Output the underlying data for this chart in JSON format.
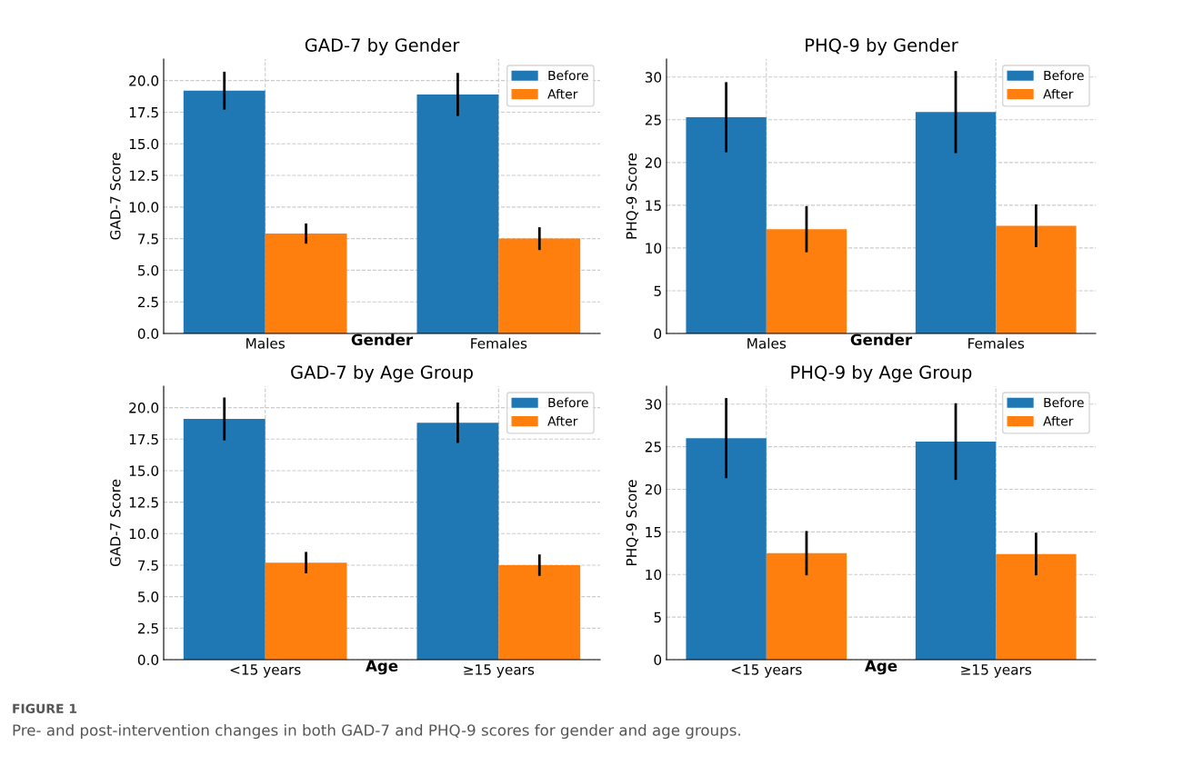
{
  "chart_data": [
    {
      "type": "bar",
      "title": "GAD-7 by Gender",
      "xlabel": "Gender",
      "ylabel": "GAD-7 Score",
      "categories": [
        "Males",
        "Females"
      ],
      "series": [
        {
          "name": "Before",
          "color": "#1f77b4",
          "values": [
            19.2,
            18.9
          ],
          "errors": [
            1.5,
            1.7
          ]
        },
        {
          "name": "After",
          "color": "#ff7f0e",
          "values": [
            7.9,
            7.5
          ],
          "errors": [
            0.8,
            0.9
          ]
        }
      ],
      "ylim": [
        0,
        21.7
      ],
      "yticks": [
        {
          "value": 0,
          "label": "0.0"
        },
        {
          "value": 2.5,
          "label": "2.5"
        },
        {
          "value": 5,
          "label": "5.0"
        },
        {
          "value": 7.5,
          "label": "7.5"
        },
        {
          "value": 10,
          "label": "10.0"
        },
        {
          "value": 12.5,
          "label": "12.5"
        },
        {
          "value": 15,
          "label": "15.0"
        },
        {
          "value": 17.5,
          "label": "17.5"
        },
        {
          "value": 20,
          "label": "20.0"
        }
      ],
      "grid": true,
      "legend": "top right"
    },
    {
      "type": "bar",
      "title": "PHQ-9 by Gender",
      "xlabel": "Gender",
      "ylabel": "PHQ-9 Score",
      "categories": [
        "Males",
        "Females"
      ],
      "series": [
        {
          "name": "Before",
          "color": "#1f77b4",
          "values": [
            25.3,
            25.9
          ],
          "errors": [
            4.1,
            4.8
          ]
        },
        {
          "name": "After",
          "color": "#ff7f0e",
          "values": [
            12.2,
            12.6
          ],
          "errors": [
            2.7,
            2.5
          ]
        }
      ],
      "ylim": [
        0,
        32.1
      ],
      "yticks": [
        0,
        5,
        10,
        15,
        20,
        25,
        30
      ],
      "grid": true,
      "legend": "top right"
    },
    {
      "type": "bar",
      "title": "GAD-7 by Age Group",
      "xlabel": "Age",
      "ylabel": "GAD-7 Score",
      "categories": [
        "<15 years",
        "≥15 years"
      ],
      "series": [
        {
          "name": "Before",
          "color": "#1f77b4",
          "values": [
            19.1,
            18.8
          ],
          "errors": [
            1.7,
            1.6
          ]
        },
        {
          "name": "After",
          "color": "#ff7f0e",
          "values": [
            7.7,
            7.5
          ],
          "errors": [
            0.85,
            0.85
          ]
        }
      ],
      "ylim": [
        0,
        21.7
      ],
      "yticks": [
        {
          "value": 0,
          "label": "0.0"
        },
        {
          "value": 2.5,
          "label": "2.5"
        },
        {
          "value": 5,
          "label": "5.0"
        },
        {
          "value": 7.5,
          "label": "7.5"
        },
        {
          "value": 10,
          "label": "10.0"
        },
        {
          "value": 12.5,
          "label": "12.5"
        },
        {
          "value": 15,
          "label": "15.0"
        },
        {
          "value": 17.5,
          "label": "17.5"
        },
        {
          "value": 20,
          "label": "20.0"
        }
      ],
      "grid": true,
      "legend": "top right"
    },
    {
      "type": "bar",
      "title": "PHQ-9 by Age Group",
      "xlabel": "Age",
      "ylabel": "PHQ-9 Score",
      "categories": [
        "<15 years",
        "≥15 years"
      ],
      "series": [
        {
          "name": "Before",
          "color": "#1f77b4",
          "values": [
            26.0,
            25.6
          ],
          "errors": [
            4.7,
            4.5
          ]
        },
        {
          "name": "After",
          "color": "#ff7f0e",
          "values": [
            12.5,
            12.4
          ],
          "errors": [
            2.6,
            2.5
          ]
        }
      ],
      "ylim": [
        0,
        32.1
      ],
      "yticks": [
        0,
        5,
        10,
        15,
        20,
        25,
        30
      ],
      "grid": true,
      "legend": "top right",
      "annotations": [
        "FIGURE 1",
        "Pre- and post-intervention changes in both GAD-7 and PHQ-9 scores for gender and age groups."
      ]
    }
  ]
}
